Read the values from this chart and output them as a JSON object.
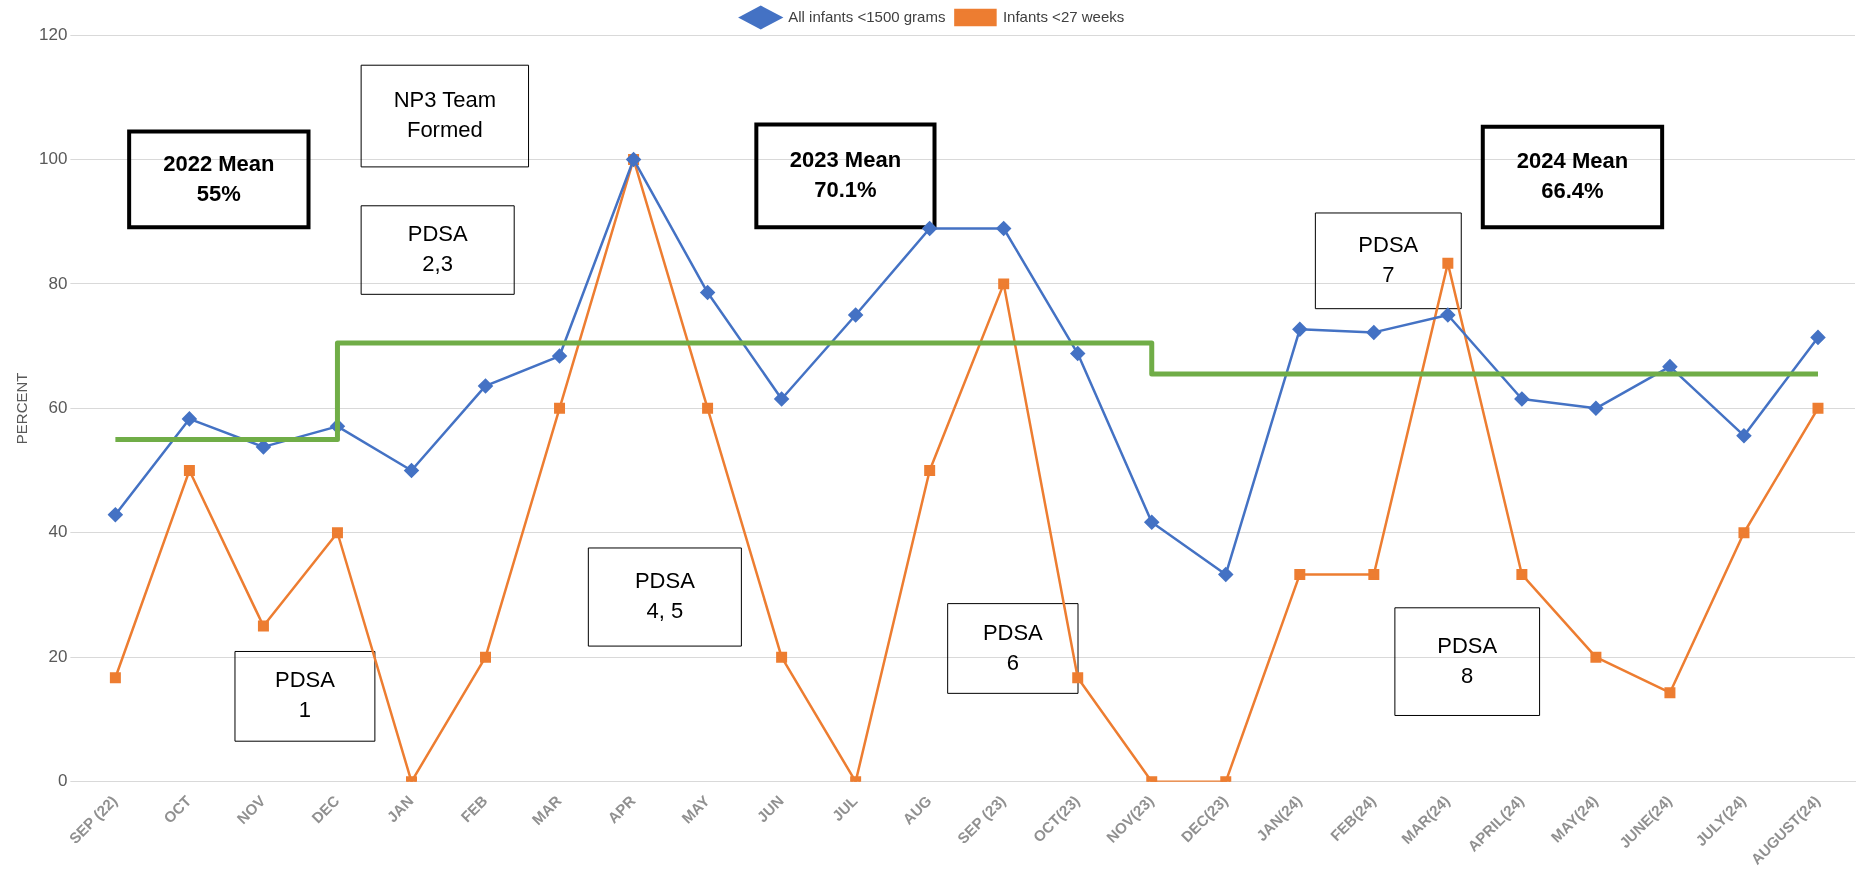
{
  "chart_data": {
    "type": "line",
    "ylabel": "PERCENT",
    "categories": [
      "SEP (22)",
      "OCT",
      "NOV",
      "DEC",
      "JAN",
      "FEB",
      "MAR",
      "APR",
      "MAY",
      "JUN",
      "JUL",
      "AUG",
      "SEP (23)",
      "OCT(23)",
      "NOV(23)",
      "DEC(23)",
      "JAN(24)",
      "FEB(24)",
      "MAR(24)",
      "APRIL(24)",
      "MAY(24)",
      "JUNE(24)",
      "JULY(24)",
      "AUGUST(24)"
    ],
    "series": [
      {
        "name": "All infants <1500 grams",
        "color": "#4472c4",
        "marker": "diamond",
        "values": [
          42.9,
          58.3,
          53.8,
          57.1,
          50,
          63.6,
          68.4,
          100,
          78.6,
          61.5,
          75,
          88.9,
          88.9,
          68.8,
          41.7,
          33.3,
          72.7,
          72.2,
          75,
          61.5,
          60,
          66.7,
          55.6,
          71.4
        ]
      },
      {
        "name": "Infants <27 weeks",
        "color": "#ed7d31",
        "marker": "square",
        "values": [
          16.7,
          50,
          25,
          40,
          0,
          20,
          60,
          100,
          60,
          20,
          0,
          50,
          80,
          16.7,
          0,
          0,
          33.3,
          33.3,
          83.3,
          33.3,
          20,
          14.3,
          40,
          60
        ]
      },
      {
        "type": "step",
        "color": "#70ad47",
        "marker": "none",
        "values": [
          55,
          55,
          55,
          55,
          70.5,
          70.5,
          70.5,
          70.5,
          70.5,
          70.5,
          70.5,
          70.5,
          70.5,
          70.5,
          70.5,
          65.5,
          65.5,
          65.5,
          65.5,
          65.5,
          65.5,
          65.5,
          65.5,
          65.5
        ]
      }
    ],
    "ylim": [
      0,
      120
    ],
    "yticks": [
      0,
      20,
      40,
      60,
      80,
      100,
      120
    ],
    "grid": "y",
    "legend": "top",
    "annotations": [
      "2022 Mean\n55%",
      "NP3 Team\nFormed",
      "PDSA\n2,3",
      "2023 Mean\n70.1%",
      "PDSA\n7",
      "2024 Mean\n66.4%",
      "PDSA\n4, 5",
      "PDSA\n1",
      "PDSA\n6",
      "PDSA\n8"
    ]
  }
}
